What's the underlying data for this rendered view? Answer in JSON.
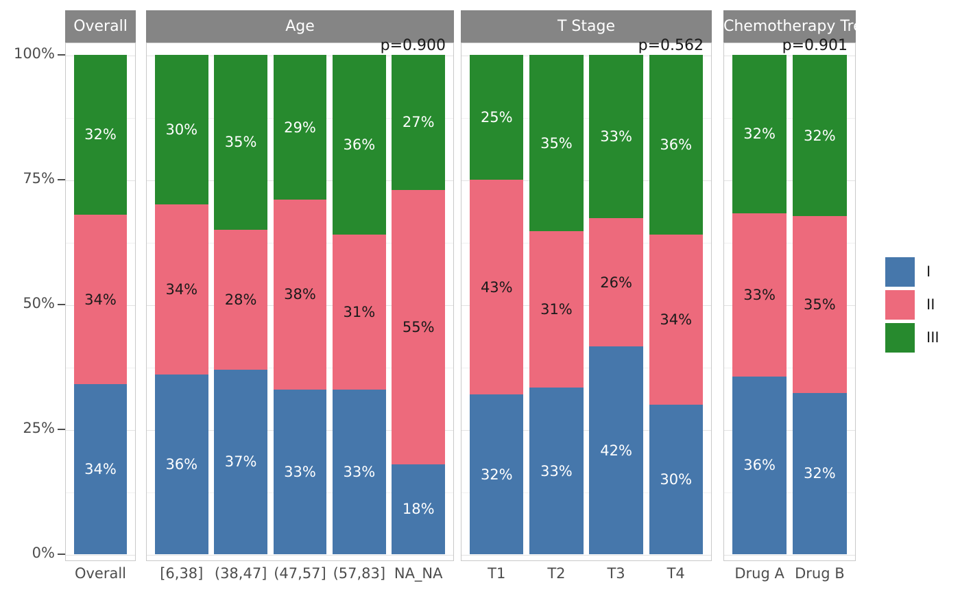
{
  "chart_data": {
    "type": "bar",
    "stacked": true,
    "percent_scale": true,
    "y_axis": {
      "ticks": [
        {
          "label": "0%",
          "value": 0
        },
        {
          "label": "25%",
          "value": 25
        },
        {
          "label": "50%",
          "value": 50
        },
        {
          "label": "75%",
          "value": 75
        },
        {
          "label": "100%",
          "value": 100
        }
      ],
      "range": [
        0,
        100
      ],
      "minor_grid_step": 12.5
    },
    "series_order": [
      "I",
      "II",
      "III"
    ],
    "legend": {
      "position": "right",
      "entries": [
        {
          "label": "I",
          "color": "#4677AB",
          "text_color": "#ffffff"
        },
        {
          "label": "II",
          "color": "#ED6A7C",
          "text_color": "#1a1a1a"
        },
        {
          "label": "III",
          "color": "#278A2E",
          "text_color": "#ffffff"
        }
      ]
    },
    "facets": [
      {
        "title": "Overall",
        "p_value": null,
        "bars": [
          {
            "label": "Overall",
            "I": 34,
            "II": 34,
            "III": 32
          }
        ]
      },
      {
        "title": "Age",
        "p_value": "p=0.900",
        "bars": [
          {
            "label": "[6,38]",
            "I": 36,
            "II": 34,
            "III": 30
          },
          {
            "label": "(38,47]",
            "I": 37,
            "II": 28,
            "III": 35
          },
          {
            "label": "(47,57]",
            "I": 33,
            "II": 38,
            "III": 29
          },
          {
            "label": "(57,83]",
            "I": 33,
            "II": 31,
            "III": 36
          },
          {
            "label": "NA_NA",
            "I": 18,
            "II": 55,
            "III": 27
          }
        ]
      },
      {
        "title": "T Stage",
        "p_value": "p=0.562",
        "bars": [
          {
            "label": "T1",
            "I": 32,
            "II": 43,
            "III": 25
          },
          {
            "label": "T2",
            "I": 33,
            "II": 31,
            "III": 35
          },
          {
            "label": "T3",
            "I": 42,
            "II": 26,
            "III": 33
          },
          {
            "label": "T4",
            "I": 30,
            "II": 34,
            "III": 36
          }
        ]
      },
      {
        "title": "Chemotherapy Treatment",
        "p_value": "p=0.901",
        "bars": [
          {
            "label": "Drug A",
            "I": 36,
            "II": 33,
            "III": 32
          },
          {
            "label": "Drug B",
            "I": 32,
            "II": 35,
            "III": 32
          }
        ]
      }
    ],
    "style_colors": {
      "strip_background": "#858585",
      "strip_text": "#ffffff",
      "axis_text": "#4d4d4d",
      "panel_border": "#c9c9c9",
      "grid_major": "#e2e2e2",
      "grid_minor": "#f0f0f0",
      "background": "#ffffff"
    }
  }
}
